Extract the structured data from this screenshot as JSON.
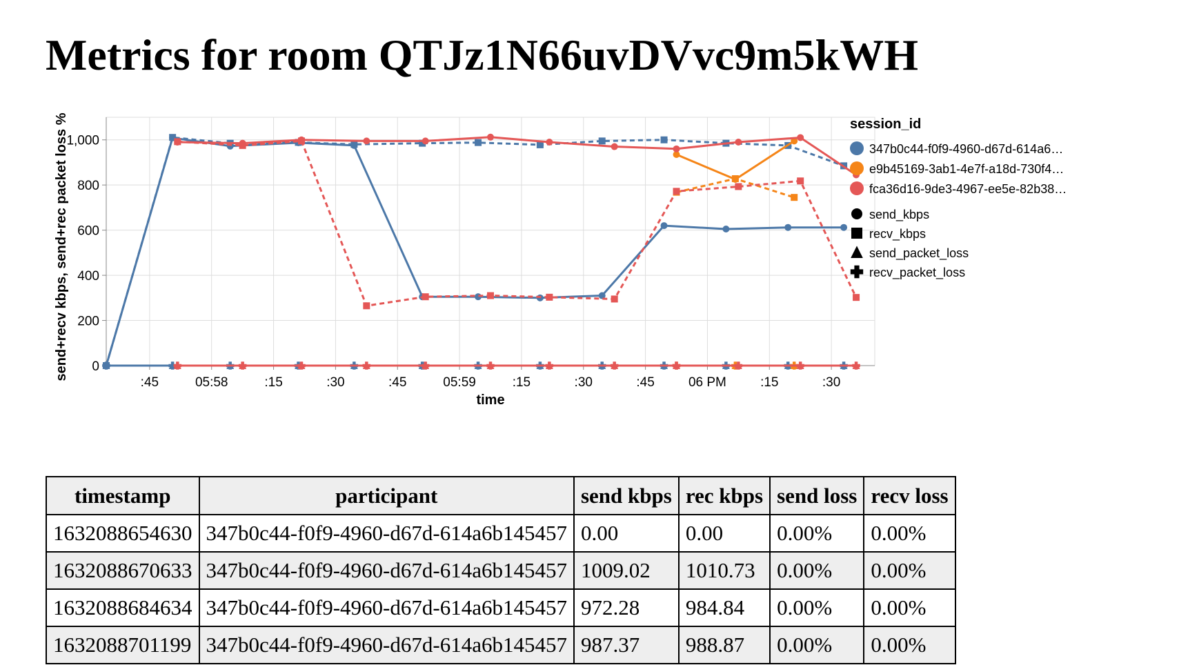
{
  "page": {
    "title": "Metrics for room QTJz1N66uvDVvc9m5kWH"
  },
  "chart_data": {
    "type": "line",
    "xlabel": "time",
    "ylabel": "send+recv kbps, send+rec packet loss %",
    "x_unit": "seconds from 05:57:34",
    "xlim": [
      0,
      124
    ],
    "ylim": [
      0,
      1100
    ],
    "x_ticks": [
      {
        "t": 7,
        "label": ":45"
      },
      {
        "t": 17,
        "label": "05:58"
      },
      {
        "t": 27,
        "label": ":15"
      },
      {
        "t": 37,
        "label": ":30"
      },
      {
        "t": 47,
        "label": ":45"
      },
      {
        "t": 57,
        "label": "05:59"
      },
      {
        "t": 67,
        "label": ":15"
      },
      {
        "t": 77,
        "label": ":30"
      },
      {
        "t": 87,
        "label": ":45"
      },
      {
        "t": 97,
        "label": "06 PM"
      },
      {
        "t": 107,
        "label": ":15"
      },
      {
        "t": 117,
        "label": ":30"
      }
    ],
    "y_ticks": [
      {
        "v": 0,
        "label": "0"
      },
      {
        "v": 200,
        "label": "200"
      },
      {
        "v": 400,
        "label": "400"
      },
      {
        "v": 600,
        "label": "600"
      },
      {
        "v": 800,
        "label": "800"
      },
      {
        "v": 1000,
        "label": "1,000"
      }
    ],
    "legend": {
      "title": "session_id",
      "placement": "right",
      "sessions": [
        {
          "name": "347b0c44-f0f9-4960-d67d-614a6…",
          "color": "#4c78a8"
        },
        {
          "name": "e9b45169-3ab1-4e7f-a18d-730f4…",
          "color": "#f58518"
        },
        {
          "name": "fca36d16-9de3-4967-ee5e-82b38…",
          "color": "#e45756"
        }
      ],
      "metrics": [
        {
          "name": "send_kbps",
          "shape": "circle"
        },
        {
          "name": "recv_kbps",
          "shape": "square"
        },
        {
          "name": "send_packet_loss",
          "shape": "triangle"
        },
        {
          "name": "recv_packet_loss",
          "shape": "cross"
        }
      ]
    },
    "series": [
      {
        "session": 0,
        "metric": "send_kbps",
        "dashed": false,
        "marker": "circle",
        "t": [
          0,
          10.7,
          20,
          31,
          40,
          51,
          60,
          70,
          80,
          90,
          100,
          110,
          119
        ],
        "values": [
          0,
          1009.02,
          972.28,
          987.37,
          975,
          305,
          305,
          300,
          310,
          620,
          605,
          612,
          612
        ]
      },
      {
        "session": 0,
        "metric": "recv_kbps",
        "dashed": true,
        "marker": "square",
        "t": [
          0,
          10.7,
          20,
          31,
          40,
          51,
          60,
          70,
          80,
          90,
          100,
          110,
          119
        ],
        "values": [
          0,
          1010.73,
          984.84,
          988.87,
          980,
          985,
          988,
          978,
          995,
          1000,
          985,
          975,
          885
        ]
      },
      {
        "session": 0,
        "metric": "send_packet_loss",
        "dashed": false,
        "marker": "triangle",
        "t": [
          0,
          10.7,
          20,
          31,
          40,
          51,
          60,
          70,
          80,
          90,
          100,
          110,
          119
        ],
        "values": [
          0,
          0,
          0,
          0,
          0,
          0,
          0,
          0,
          0,
          0,
          0,
          0,
          0
        ]
      },
      {
        "session": 0,
        "metric": "recv_packet_loss",
        "dashed": true,
        "marker": "cross",
        "t": [
          0,
          10.7,
          20,
          31,
          40,
          51,
          60,
          70,
          80,
          90,
          100,
          110,
          119
        ],
        "values": [
          0,
          0,
          0,
          0,
          0,
          0,
          0,
          0,
          0,
          0,
          0,
          0,
          0
        ]
      },
      {
        "session": 1,
        "metric": "send_kbps",
        "dashed": false,
        "marker": "circle",
        "t": [
          92,
          101.5,
          111
        ],
        "values": [
          935,
          825,
          995
        ]
      },
      {
        "session": 1,
        "metric": "recv_kbps",
        "dashed": true,
        "marker": "square",
        "t": [
          92,
          101.5,
          111
        ],
        "values": [
          768,
          828,
          745
        ]
      },
      {
        "session": 1,
        "metric": "send_packet_loss",
        "dashed": false,
        "marker": "triangle",
        "t": [
          92,
          101.5,
          111
        ],
        "values": [
          0,
          0,
          0
        ]
      },
      {
        "session": 1,
        "metric": "recv_packet_loss",
        "dashed": true,
        "marker": "cross",
        "t": [
          92,
          101.5,
          111
        ],
        "values": [
          0,
          0,
          0
        ]
      },
      {
        "session": 2,
        "metric": "send_kbps",
        "dashed": false,
        "marker": "circle",
        "t": [
          11.5,
          22,
          31.5,
          42,
          51.5,
          62,
          71.5,
          82,
          92,
          102,
          112,
          121
        ],
        "values": [
          990,
          985,
          1000,
          995,
          995,
          1012,
          990,
          970,
          960,
          990,
          1010,
          845
        ]
      },
      {
        "session": 2,
        "metric": "recv_kbps",
        "dashed": true,
        "marker": "square",
        "t": [
          11.5,
          22,
          31.5,
          42,
          51.5,
          62,
          71.5,
          82,
          92,
          102,
          112,
          121
        ],
        "values": [
          992,
          975,
          995,
          265,
          305,
          310,
          303,
          295,
          772,
          793,
          818,
          302
        ]
      },
      {
        "session": 2,
        "metric": "send_packet_loss",
        "dashed": false,
        "marker": "triangle",
        "t": [
          11.5,
          22,
          31.5,
          42,
          51.5,
          62,
          71.5,
          82,
          92,
          102,
          112,
          121
        ],
        "values": [
          0,
          0,
          0,
          0,
          0,
          0,
          0,
          0,
          0,
          0,
          0,
          0
        ]
      },
      {
        "session": 2,
        "metric": "recv_packet_loss",
        "dashed": true,
        "marker": "cross",
        "t": [
          11.5,
          22,
          31.5,
          42,
          51.5,
          62,
          71.5,
          82,
          92,
          102,
          112,
          121
        ],
        "values": [
          0,
          0,
          0,
          0,
          0,
          0,
          0,
          0,
          0,
          0,
          0,
          0
        ]
      }
    ]
  },
  "table": {
    "headers": [
      "timestamp",
      "participant",
      "send kbps",
      "rec kbps",
      "send loss",
      "recv loss"
    ],
    "rows": [
      [
        "1632088654630",
        "347b0c44-f0f9-4960-d67d-614a6b145457",
        "0.00",
        "0.00",
        "0.00%",
        "0.00%"
      ],
      [
        "1632088670633",
        "347b0c44-f0f9-4960-d67d-614a6b145457",
        "1009.02",
        "1010.73",
        "0.00%",
        "0.00%"
      ],
      [
        "1632088684634",
        "347b0c44-f0f9-4960-d67d-614a6b145457",
        "972.28",
        "984.84",
        "0.00%",
        "0.00%"
      ],
      [
        "1632088701199",
        "347b0c44-f0f9-4960-d67d-614a6b145457",
        "987.37",
        "988.87",
        "0.00%",
        "0.00%"
      ]
    ]
  }
}
